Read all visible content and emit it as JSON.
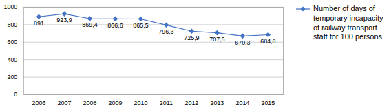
{
  "chart_data": {
    "type": "line",
    "x": [
      2006,
      2007,
      2008,
      2009,
      2010,
      2011,
      2012,
      2013,
      2014,
      2015
    ],
    "series": [
      {
        "name": "Number of days of\ntemporary incapacity\nof railway transport\nstaff for 100 persons",
        "color": "#4472C4",
        "marker": "diamond",
        "values": [
          891,
          923.9,
          869.4,
          866.6,
          865.5,
          796.3,
          725.9,
          707.5,
          670.3,
          684.8
        ],
        "value_labels": [
          "891",
          "923,9",
          "869,4",
          "866,6",
          "865,5",
          "796,3",
          "725,9",
          "707,5",
          "670,3",
          "684,8"
        ]
      }
    ],
    "xlim": [
      2005.4,
      2015.6
    ],
    "xticks": [
      2006,
      2007,
      2008,
      2009,
      2010,
      2011,
      2012,
      2013,
      2014,
      2015
    ],
    "ylim": [
      0,
      1000
    ],
    "yticks": [
      0,
      200,
      400,
      600,
      800,
      1000
    ],
    "grid": "y",
    "data_labels": true,
    "legend": "right"
  }
}
